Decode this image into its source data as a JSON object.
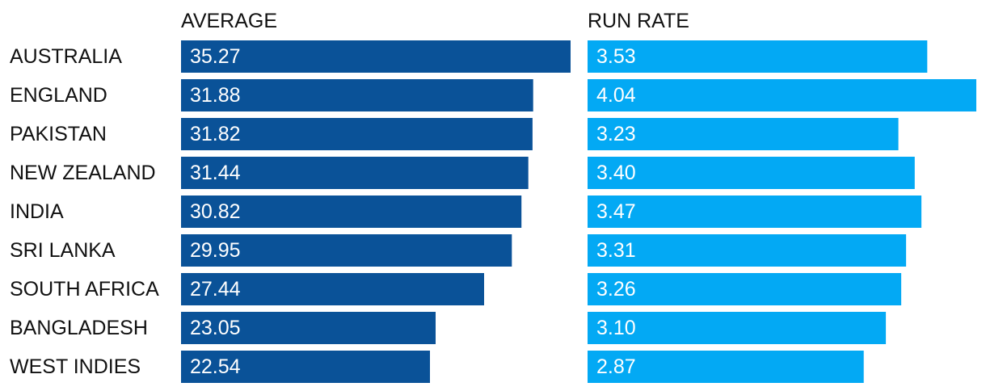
{
  "chart_data": {
    "type": "bar",
    "orientation": "horizontal",
    "categories": [
      "AUSTRALIA",
      "ENGLAND",
      "PAKISTAN",
      "NEW ZEALAND",
      "INDIA",
      "SRI LANKA",
      "SOUTH AFRICA",
      "BANGLADESH",
      "WEST INDIES"
    ],
    "panels": [
      {
        "header": "AVERAGE",
        "values": [
          35.27,
          31.88,
          31.82,
          31.44,
          30.82,
          29.95,
          27.44,
          23.05,
          22.54
        ],
        "labels": [
          "35.27",
          "31.88",
          "31.82",
          "31.44",
          "30.82",
          "29.95",
          "27.44",
          "23.05",
          "22.54"
        ],
        "color": "#0a5298",
        "xlim": [
          0,
          35.27
        ]
      },
      {
        "header": "RUN RATE",
        "values": [
          3.53,
          4.04,
          3.23,
          3.4,
          3.47,
          3.31,
          3.26,
          3.1,
          2.87
        ],
        "labels": [
          "3.53",
          "4.04",
          "3.23",
          "3.40",
          "3.47",
          "3.31",
          "3.26",
          "3.10",
          "2.87"
        ],
        "color": "#03a9f4",
        "xlim": [
          0,
          4.04
        ]
      }
    ],
    "grid": false,
    "legend": "none"
  }
}
